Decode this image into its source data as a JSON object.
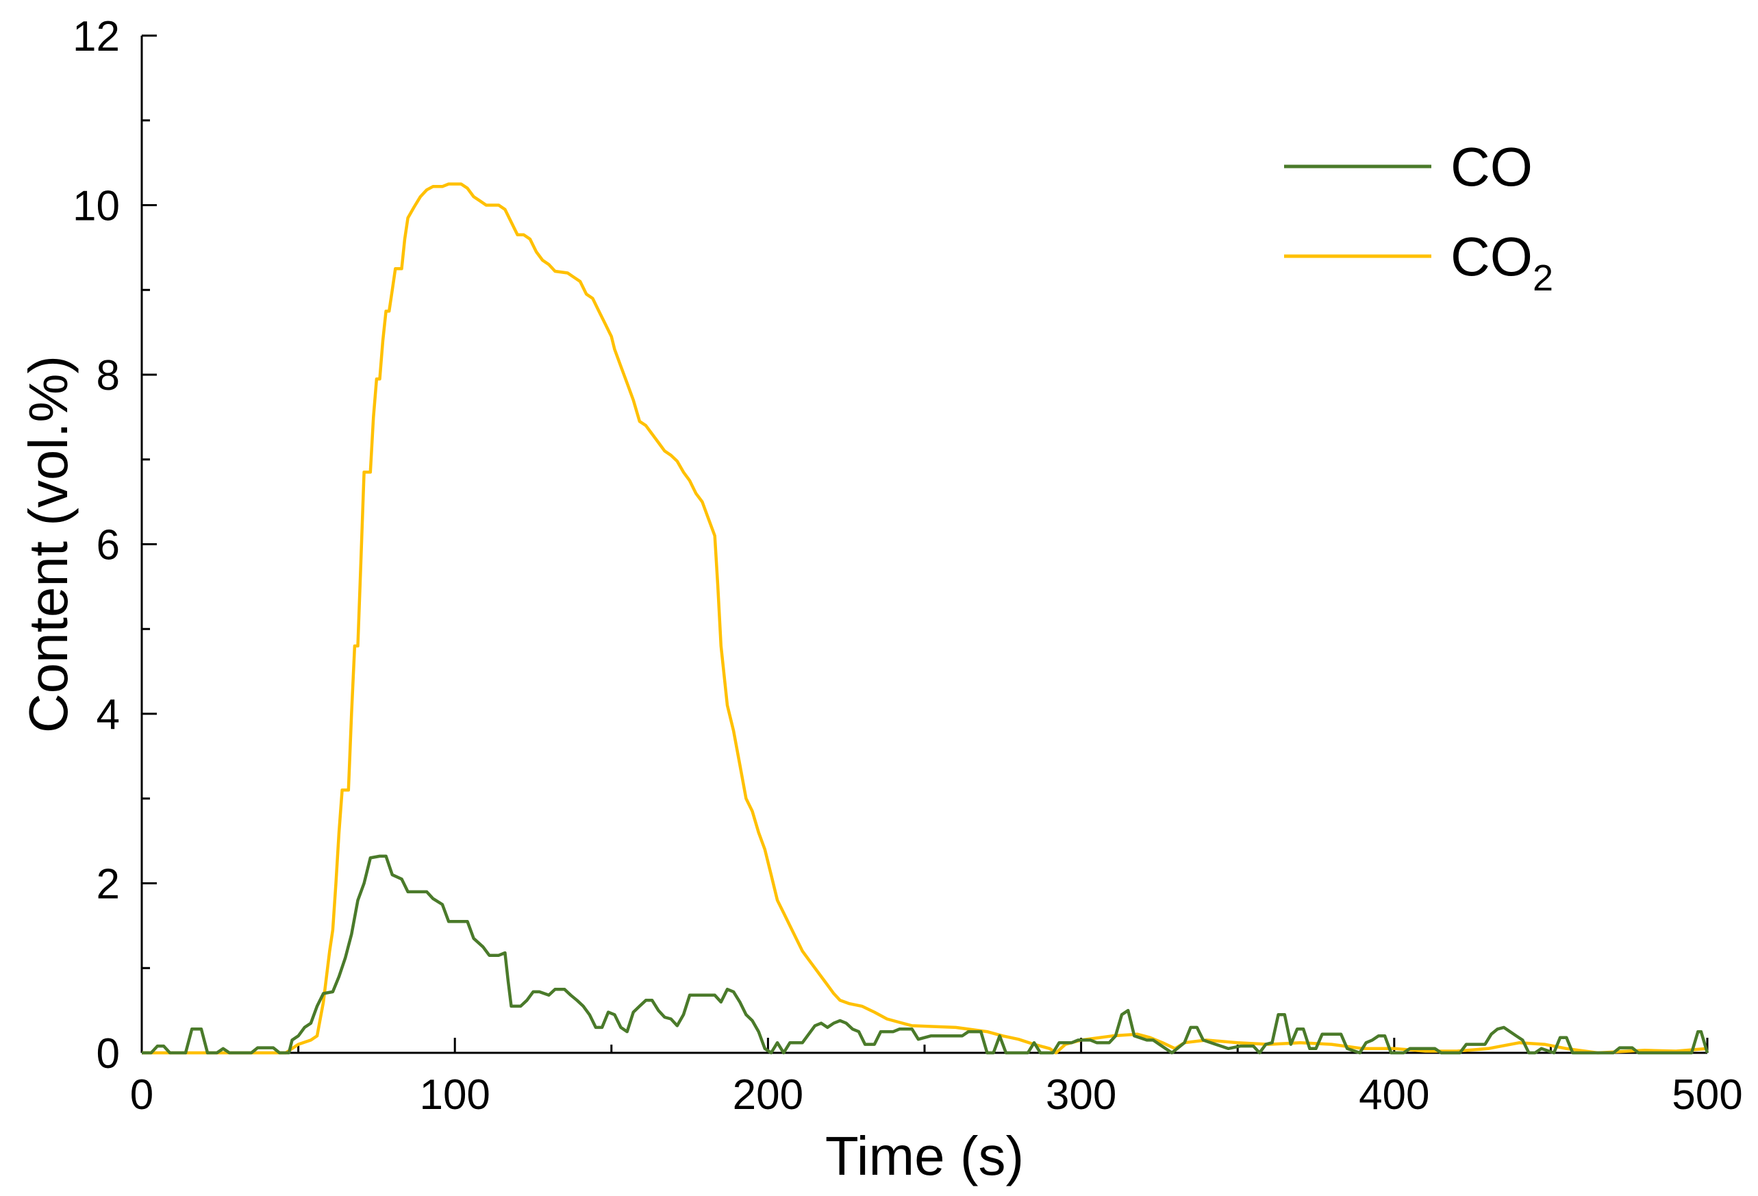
{
  "chart_data": {
    "type": "line",
    "xlabel": "Time (s)",
    "ylabel": "Content (vol.%)",
    "xlim": [
      0,
      500
    ],
    "ylim": [
      0,
      12
    ],
    "x_ticks": [
      "0",
      "100",
      "200",
      "300",
      "400",
      "500"
    ],
    "y_ticks": [
      "0",
      "2",
      "4",
      "6",
      "8",
      "10",
      "12"
    ],
    "grid": false,
    "legend_position": "top-right",
    "series": [
      {
        "name": "CO",
        "legend_label": "CO",
        "legend_subscript": "",
        "color": "#4a7a2a",
        "points": [
          [
            0,
            0
          ],
          [
            3,
            0
          ],
          [
            5,
            0.08
          ],
          [
            7,
            0.08
          ],
          [
            9,
            0
          ],
          [
            14,
            0
          ],
          [
            16,
            0.28
          ],
          [
            19,
            0.28
          ],
          [
            21,
            0
          ],
          [
            24,
            0
          ],
          [
            26,
            0.05
          ],
          [
            28,
            0
          ],
          [
            35,
            0
          ],
          [
            37,
            0.06
          ],
          [
            42,
            0.06
          ],
          [
            44,
            0
          ],
          [
            47,
            0
          ],
          [
            48,
            0.15
          ],
          [
            50,
            0.2
          ],
          [
            52,
            0.3
          ],
          [
            54,
            0.35
          ],
          [
            56,
            0.55
          ],
          [
            58,
            0.7
          ],
          [
            61,
            0.72
          ],
          [
            63,
            0.9
          ],
          [
            65,
            1.12
          ],
          [
            67,
            1.4
          ],
          [
            69,
            1.8
          ],
          [
            71,
            2.0
          ],
          [
            73,
            2.3
          ],
          [
            76,
            2.32
          ],
          [
            78,
            2.32
          ],
          [
            80,
            2.1
          ],
          [
            83,
            2.05
          ],
          [
            85,
            1.9
          ],
          [
            88,
            1.9
          ],
          [
            91,
            1.9
          ],
          [
            93,
            1.82
          ],
          [
            96,
            1.75
          ],
          [
            98,
            1.55
          ],
          [
            104,
            1.55
          ],
          [
            106,
            1.35
          ],
          [
            109,
            1.25
          ],
          [
            111,
            1.15
          ],
          [
            114,
            1.15
          ],
          [
            116,
            1.18
          ],
          [
            117,
            0.85
          ],
          [
            118,
            0.55
          ],
          [
            121,
            0.55
          ],
          [
            123,
            0.62
          ],
          [
            125,
            0.72
          ],
          [
            127,
            0.72
          ],
          [
            130,
            0.68
          ],
          [
            132,
            0.75
          ],
          [
            135,
            0.75
          ],
          [
            137,
            0.68
          ],
          [
            139,
            0.62
          ],
          [
            141,
            0.55
          ],
          [
            143,
            0.45
          ],
          [
            145,
            0.3
          ],
          [
            147,
            0.3
          ],
          [
            149,
            0.48
          ],
          [
            151,
            0.45
          ],
          [
            153,
            0.3
          ],
          [
            155,
            0.25
          ],
          [
            157,
            0.48
          ],
          [
            159,
            0.55
          ],
          [
            161,
            0.62
          ],
          [
            163,
            0.62
          ],
          [
            165,
            0.5
          ],
          [
            167,
            0.42
          ],
          [
            169,
            0.4
          ],
          [
            171,
            0.32
          ],
          [
            173,
            0.45
          ],
          [
            175,
            0.68
          ],
          [
            183,
            0.68
          ],
          [
            185,
            0.6
          ],
          [
            187,
            0.75
          ],
          [
            189,
            0.72
          ],
          [
            191,
            0.6
          ],
          [
            193,
            0.45
          ],
          [
            195,
            0.38
          ],
          [
            197,
            0.25
          ],
          [
            199,
            0.05
          ],
          [
            201,
            0
          ],
          [
            203,
            0.12
          ],
          [
            205,
            0
          ],
          [
            207,
            0.12
          ],
          [
            211,
            0.12
          ],
          [
            213,
            0.22
          ],
          [
            215,
            0.32
          ],
          [
            217,
            0.35
          ],
          [
            219,
            0.3
          ],
          [
            221,
            0.35
          ],
          [
            223,
            0.38
          ],
          [
            225,
            0.35
          ],
          [
            227,
            0.28
          ],
          [
            229,
            0.25
          ],
          [
            231,
            0.1
          ],
          [
            234,
            0.1
          ],
          [
            236,
            0.25
          ],
          [
            240,
            0.25
          ],
          [
            242,
            0.28
          ],
          [
            246,
            0.28
          ],
          [
            248,
            0.16
          ],
          [
            252,
            0.2
          ],
          [
            262,
            0.2
          ],
          [
            264,
            0.25
          ],
          [
            268,
            0.25
          ],
          [
            270,
            0
          ],
          [
            272,
            0
          ],
          [
            274,
            0.2
          ],
          [
            276,
            0
          ],
          [
            283,
            0
          ],
          [
            285,
            0.12
          ],
          [
            287,
            0
          ],
          [
            291,
            0
          ],
          [
            293,
            0.12
          ],
          [
            297,
            0.12
          ],
          [
            299,
            0.15
          ],
          [
            303,
            0.15
          ],
          [
            305,
            0.12
          ],
          [
            309,
            0.12
          ],
          [
            311,
            0.2
          ],
          [
            313,
            0.45
          ],
          [
            315,
            0.5
          ],
          [
            317,
            0.2
          ],
          [
            321,
            0.15
          ],
          [
            323,
            0.15
          ],
          [
            325,
            0.1
          ],
          [
            329,
            0
          ],
          [
            333,
            0.12
          ],
          [
            335,
            0.3
          ],
          [
            337,
            0.3
          ],
          [
            339,
            0.15
          ],
          [
            343,
            0.1
          ],
          [
            347,
            0.05
          ],
          [
            351,
            0.08
          ],
          [
            355,
            0.08
          ],
          [
            357,
            0
          ],
          [
            359,
            0.1
          ],
          [
            361,
            0.12
          ],
          [
            363,
            0.45
          ],
          [
            365,
            0.45
          ],
          [
            367,
            0.1
          ],
          [
            369,
            0.28
          ],
          [
            371,
            0.28
          ],
          [
            373,
            0.05
          ],
          [
            375,
            0.05
          ],
          [
            377,
            0.22
          ],
          [
            383,
            0.22
          ],
          [
            385,
            0.05
          ],
          [
            389,
            0
          ],
          [
            391,
            0.12
          ],
          [
            393,
            0.15
          ],
          [
            395,
            0.2
          ],
          [
            397,
            0.2
          ],
          [
            399,
            0
          ],
          [
            403,
            0
          ],
          [
            405,
            0.05
          ],
          [
            413,
            0.05
          ],
          [
            415,
            0
          ],
          [
            421,
            0
          ],
          [
            423,
            0.1
          ],
          [
            425,
            0.1
          ],
          [
            429,
            0.1
          ],
          [
            431,
            0.22
          ],
          [
            433,
            0.28
          ],
          [
            435,
            0.3
          ],
          [
            437,
            0.25
          ],
          [
            439,
            0.2
          ],
          [
            441,
            0.15
          ],
          [
            443,
            0
          ],
          [
            445,
            0
          ],
          [
            447,
            0.05
          ],
          [
            451,
            0
          ],
          [
            453,
            0.18
          ],
          [
            455,
            0.18
          ],
          [
            457,
            0
          ],
          [
            470,
            0
          ],
          [
            472,
            0.06
          ],
          [
            476,
            0.06
          ],
          [
            478,
            0
          ],
          [
            495,
            0
          ],
          [
            497,
            0.25
          ],
          [
            498,
            0.25
          ],
          [
            500,
            0
          ]
        ]
      },
      {
        "name": "CO2",
        "legend_label": "CO",
        "legend_subscript": "2",
        "color": "#ffc000",
        "points": [
          [
            0,
            0
          ],
          [
            40,
            0
          ],
          [
            46,
            0
          ],
          [
            48,
            0.05
          ],
          [
            50,
            0.1
          ],
          [
            54,
            0.15
          ],
          [
            56,
            0.2
          ],
          [
            58,
            0.6
          ],
          [
            60,
            1.2
          ],
          [
            61,
            1.45
          ],
          [
            62,
            2.0
          ],
          [
            63,
            2.6
          ],
          [
            64,
            3.1
          ],
          [
            66,
            3.1
          ],
          [
            67,
            4.0
          ],
          [
            68,
            4.8
          ],
          [
            69,
            4.8
          ],
          [
            70,
            5.8
          ],
          [
            71,
            6.85
          ],
          [
            73,
            6.85
          ],
          [
            74,
            7.5
          ],
          [
            75,
            7.95
          ],
          [
            76,
            7.95
          ],
          [
            77,
            8.4
          ],
          [
            78,
            8.75
          ],
          [
            79,
            8.75
          ],
          [
            80,
            9.0
          ],
          [
            81,
            9.25
          ],
          [
            83,
            9.25
          ],
          [
            84,
            9.6
          ],
          [
            85,
            9.85
          ],
          [
            87,
            9.98
          ],
          [
            89,
            10.1
          ],
          [
            91,
            10.18
          ],
          [
            93,
            10.22
          ],
          [
            96,
            10.22
          ],
          [
            98,
            10.25
          ],
          [
            102,
            10.25
          ],
          [
            104,
            10.2
          ],
          [
            106,
            10.1
          ],
          [
            108,
            10.05
          ],
          [
            110,
            10.0
          ],
          [
            114,
            10.0
          ],
          [
            116,
            9.95
          ],
          [
            118,
            9.8
          ],
          [
            120,
            9.65
          ],
          [
            122,
            9.65
          ],
          [
            124,
            9.6
          ],
          [
            126,
            9.45
          ],
          [
            128,
            9.35
          ],
          [
            130,
            9.3
          ],
          [
            132,
            9.22
          ],
          [
            136,
            9.2
          ],
          [
            138,
            9.15
          ],
          [
            140,
            9.1
          ],
          [
            142,
            8.95
          ],
          [
            144,
            8.9
          ],
          [
            146,
            8.75
          ],
          [
            148,
            8.6
          ],
          [
            150,
            8.45
          ],
          [
            151,
            8.3
          ],
          [
            153,
            8.1
          ],
          [
            155,
            7.9
          ],
          [
            157,
            7.7
          ],
          [
            159,
            7.45
          ],
          [
            161,
            7.4
          ],
          [
            163,
            7.3
          ],
          [
            165,
            7.2
          ],
          [
            167,
            7.1
          ],
          [
            169,
            7.05
          ],
          [
            171,
            6.98
          ],
          [
            173,
            6.85
          ],
          [
            175,
            6.75
          ],
          [
            177,
            6.6
          ],
          [
            179,
            6.5
          ],
          [
            181,
            6.3
          ],
          [
            183,
            6.1
          ],
          [
            184,
            5.5
          ],
          [
            185,
            4.8
          ],
          [
            187,
            4.1
          ],
          [
            189,
            3.8
          ],
          [
            191,
            3.4
          ],
          [
            193,
            3.0
          ],
          [
            195,
            2.85
          ],
          [
            197,
            2.6
          ],
          [
            199,
            2.4
          ],
          [
            201,
            2.1
          ],
          [
            203,
            1.8
          ],
          [
            205,
            1.65
          ],
          [
            207,
            1.5
          ],
          [
            209,
            1.35
          ],
          [
            211,
            1.2
          ],
          [
            213,
            1.1
          ],
          [
            215,
            1.0
          ],
          [
            217,
            0.9
          ],
          [
            219,
            0.8
          ],
          [
            221,
            0.7
          ],
          [
            223,
            0.62
          ],
          [
            226,
            0.58
          ],
          [
            230,
            0.55
          ],
          [
            234,
            0.48
          ],
          [
            238,
            0.4
          ],
          [
            242,
            0.36
          ],
          [
            246,
            0.32
          ],
          [
            260,
            0.3
          ],
          [
            270,
            0.25
          ],
          [
            275,
            0.2
          ],
          [
            280,
            0.16
          ],
          [
            285,
            0.1
          ],
          [
            290,
            0.05
          ],
          [
            292,
            0
          ],
          [
            295,
            0.1
          ],
          [
            300,
            0.15
          ],
          [
            310,
            0.2
          ],
          [
            318,
            0.22
          ],
          [
            322,
            0.18
          ],
          [
            326,
            0.12
          ],
          [
            330,
            0.05
          ],
          [
            333,
            0.12
          ],
          [
            340,
            0.15
          ],
          [
            350,
            0.12
          ],
          [
            360,
            0.1
          ],
          [
            370,
            0.12
          ],
          [
            380,
            0.1
          ],
          [
            390,
            0.05
          ],
          [
            400,
            0.05
          ],
          [
            410,
            0.02
          ],
          [
            420,
            0.02
          ],
          [
            430,
            0.05
          ],
          [
            440,
            0.12
          ],
          [
            448,
            0.1
          ],
          [
            455,
            0.05
          ],
          [
            465,
            0
          ],
          [
            480,
            0.03
          ],
          [
            490,
            0.02
          ],
          [
            500,
            0.05
          ]
        ]
      }
    ]
  }
}
